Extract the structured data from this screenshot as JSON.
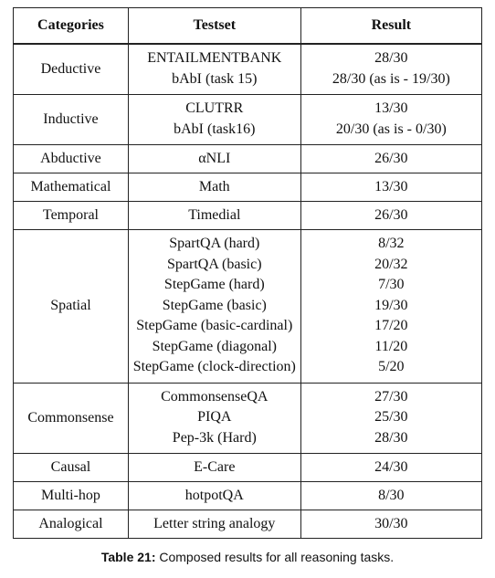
{
  "table": {
    "headers": [
      "Categories",
      "Testset",
      "Result"
    ],
    "rows": [
      {
        "category": "Deductive",
        "testsets": [
          "ENTAILMENTBANK",
          "bAbI (task 15)"
        ],
        "results": [
          "28/30",
          "28/30 (as is - 19/30)"
        ]
      },
      {
        "category": "Inductive",
        "testsets": [
          "CLUTRR",
          "bAbI (task16)"
        ],
        "results": [
          "13/30",
          "20/30 (as is - 0/30)"
        ]
      },
      {
        "category": "Abductive",
        "testsets": [
          "αNLI"
        ],
        "results": [
          "26/30"
        ]
      },
      {
        "category": "Mathematical",
        "testsets": [
          "Math"
        ],
        "results": [
          "13/30"
        ]
      },
      {
        "category": "Temporal",
        "testsets": [
          "Timedial"
        ],
        "results": [
          "26/30"
        ]
      },
      {
        "category": "Spatial",
        "testsets": [
          "SpartQA (hard)",
          "SpartQA (basic)",
          "StepGame (hard)",
          "StepGame (basic)",
          "StepGame (basic-cardinal)",
          "StepGame (diagonal)",
          "StepGame (clock-direction)"
        ],
        "results": [
          "8/32",
          "20/32",
          "7/30",
          "19/30",
          "17/20",
          "11/20",
          "5/20"
        ]
      },
      {
        "category": "Commonsense",
        "testsets": [
          "CommonsenseQA",
          "PIQA",
          "Pep-3k (Hard)"
        ],
        "results": [
          "27/30",
          "25/30",
          "28/30"
        ]
      },
      {
        "category": "Causal",
        "testsets": [
          "E-Care"
        ],
        "results": [
          "24/30"
        ]
      },
      {
        "category": "Multi-hop",
        "testsets": [
          "hotpotQA"
        ],
        "results": [
          "8/30"
        ]
      },
      {
        "category": "Analogical",
        "testsets": [
          "Letter string analogy"
        ],
        "results": [
          "30/30"
        ]
      }
    ]
  },
  "caption": {
    "label": "Table 21:",
    "text": " Composed results for all reasoning tasks."
  }
}
